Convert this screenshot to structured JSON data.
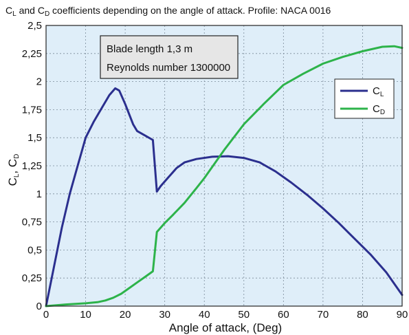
{
  "chart_data": {
    "type": "line",
    "title": "C_L and C_D coefficients depending on the angle of attack. Profile: NACA 0016",
    "title_parts": {
      "pre": "C",
      "pre_sub": "L",
      "mid": " and C",
      "mid_sub": "D",
      "post": " coefficients depending on the angle of attack. Profile: NACA 0016"
    },
    "xlabel": "Angle of attack, (Deg)",
    "ylabel": "C_L, C_D",
    "ylabel_parts": {
      "a": "C",
      "a_sub": "L",
      "sep": ", ",
      "b": "C",
      "b_sub": "D"
    },
    "xlim": [
      0,
      90
    ],
    "ylim": [
      0,
      2.5
    ],
    "x_ticks": [
      0,
      10,
      20,
      30,
      40,
      50,
      60,
      70,
      80,
      90
    ],
    "x_tick_labels": [
      "0",
      "10",
      "20",
      "30",
      "40",
      "50",
      "60",
      "70",
      "80",
      "90"
    ],
    "y_ticks": [
      0,
      0.25,
      0.5,
      0.75,
      1,
      1.25,
      1.5,
      1.75,
      2,
      2.25,
      2.5
    ],
    "y_tick_labels": [
      "0",
      "0,25",
      "0,5",
      "0,75",
      "1",
      "1,25",
      "1,5",
      "1,75",
      "2",
      "2,25",
      "2,5"
    ],
    "grid": true,
    "legend_position": "top-right",
    "annotations": [
      "Blade length 1,3 m",
      "Reynolds number 1300000"
    ],
    "background_color": "#dfeef9",
    "series": [
      {
        "name": "C_L",
        "label_base": "C",
        "label_sub": "L",
        "color": "#2b2f8e",
        "points": [
          [
            0,
            0
          ],
          [
            2,
            0.35
          ],
          [
            4,
            0.7
          ],
          [
            6,
            1.0
          ],
          [
            8,
            1.25
          ],
          [
            10,
            1.5
          ],
          [
            12,
            1.64
          ],
          [
            14,
            1.76
          ],
          [
            16,
            1.88
          ],
          [
            17.5,
            1.94
          ],
          [
            18.5,
            1.92
          ],
          [
            20,
            1.8
          ],
          [
            22,
            1.62
          ],
          [
            23,
            1.56
          ],
          [
            25,
            1.52
          ],
          [
            27,
            1.48
          ],
          [
            28,
            1.02
          ],
          [
            29,
            1.07
          ],
          [
            31,
            1.15
          ],
          [
            33,
            1.23
          ],
          [
            35,
            1.28
          ],
          [
            38,
            1.31
          ],
          [
            42,
            1.33
          ],
          [
            46,
            1.335
          ],
          [
            50,
            1.32
          ],
          [
            54,
            1.28
          ],
          [
            58,
            1.2
          ],
          [
            62,
            1.1
          ],
          [
            66,
            0.99
          ],
          [
            70,
            0.87
          ],
          [
            74,
            0.74
          ],
          [
            78,
            0.6
          ],
          [
            82,
            0.46
          ],
          [
            86,
            0.3
          ],
          [
            90,
            0.1
          ]
        ]
      },
      {
        "name": "C_D",
        "label_base": "C",
        "label_sub": "D",
        "color": "#2db34a",
        "points": [
          [
            0,
            0
          ],
          [
            5,
            0.015
          ],
          [
            10,
            0.025
          ],
          [
            13,
            0.035
          ],
          [
            15,
            0.05
          ],
          [
            17,
            0.075
          ],
          [
            19,
            0.11
          ],
          [
            21,
            0.16
          ],
          [
            23,
            0.21
          ],
          [
            25,
            0.26
          ],
          [
            27,
            0.31
          ],
          [
            28,
            0.66
          ],
          [
            30,
            0.74
          ],
          [
            32,
            0.81
          ],
          [
            35,
            0.92
          ],
          [
            38,
            1.05
          ],
          [
            40,
            1.14
          ],
          [
            45,
            1.39
          ],
          [
            50,
            1.62
          ],
          [
            55,
            1.8
          ],
          [
            60,
            1.97
          ],
          [
            65,
            2.07
          ],
          [
            70,
            2.16
          ],
          [
            75,
            2.22
          ],
          [
            80,
            2.27
          ],
          [
            85,
            2.31
          ],
          [
            88,
            2.315
          ],
          [
            90,
            2.3
          ]
        ]
      }
    ]
  }
}
